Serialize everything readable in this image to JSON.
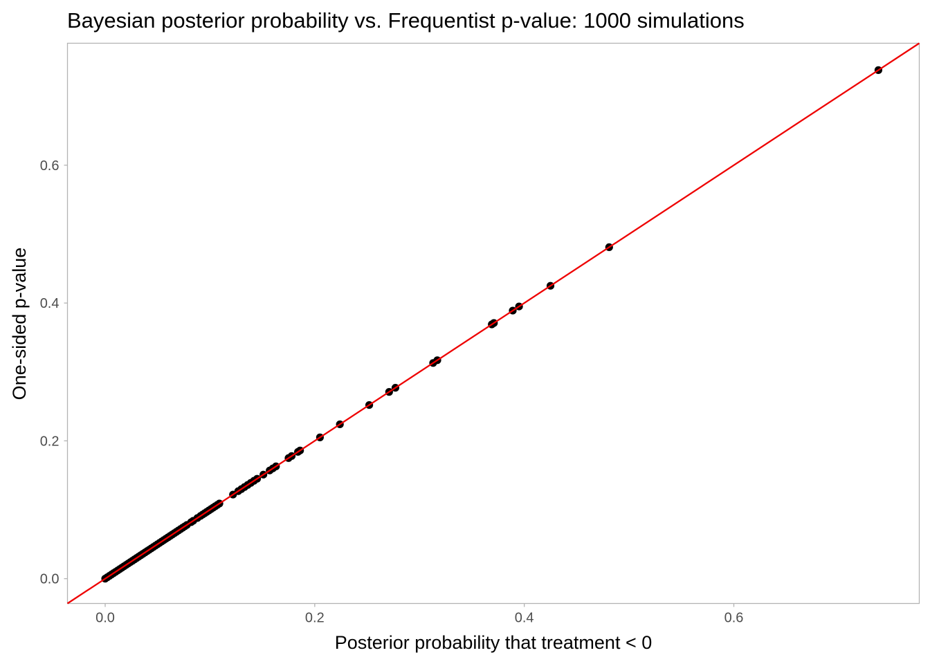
{
  "chart_data": {
    "type": "scatter",
    "title": "Bayesian posterior probability vs. Frequentist p-value: 1000 simulations",
    "xlabel": "Posterior probability that treatment < 0",
    "ylabel": "One-sided p-value",
    "xlim": [
      -0.036,
      0.777
    ],
    "ylim": [
      -0.036,
      0.777
    ],
    "x_ticks": [
      0.0,
      0.2,
      0.4,
      0.6
    ],
    "x_tick_labels": [
      "0.0",
      "0.2",
      "0.4",
      "0.6"
    ],
    "y_ticks": [
      0.0,
      0.2,
      0.4,
      0.6
    ],
    "y_tick_labels": [
      "0.0",
      "0.2",
      "0.4",
      "0.6"
    ],
    "grid": false,
    "reference_line": {
      "slope": 1,
      "intercept": 0,
      "color": "#ee0000"
    },
    "point_color": "#000000",
    "points": [
      [
        0.0,
        0.0
      ],
      [
        0.002,
        0.002
      ],
      [
        0.004,
        0.004
      ],
      [
        0.006,
        0.006
      ],
      [
        0.008,
        0.008
      ],
      [
        0.01,
        0.01
      ],
      [
        0.012,
        0.012
      ],
      [
        0.014,
        0.014
      ],
      [
        0.016,
        0.016
      ],
      [
        0.018,
        0.018
      ],
      [
        0.02,
        0.02
      ],
      [
        0.022,
        0.022
      ],
      [
        0.024,
        0.024
      ],
      [
        0.026,
        0.026
      ],
      [
        0.028,
        0.028
      ],
      [
        0.03,
        0.03
      ],
      [
        0.032,
        0.032
      ],
      [
        0.034,
        0.034
      ],
      [
        0.036,
        0.036
      ],
      [
        0.038,
        0.038
      ],
      [
        0.04,
        0.04
      ],
      [
        0.042,
        0.042
      ],
      [
        0.044,
        0.044
      ],
      [
        0.046,
        0.046
      ],
      [
        0.048,
        0.048
      ],
      [
        0.05,
        0.05
      ],
      [
        0.052,
        0.052
      ],
      [
        0.054,
        0.054
      ],
      [
        0.056,
        0.056
      ],
      [
        0.058,
        0.058
      ],
      [
        0.06,
        0.06
      ],
      [
        0.062,
        0.062
      ],
      [
        0.064,
        0.064
      ],
      [
        0.066,
        0.066
      ],
      [
        0.068,
        0.068
      ],
      [
        0.07,
        0.07
      ],
      [
        0.072,
        0.072
      ],
      [
        0.074,
        0.074
      ],
      [
        0.076,
        0.076
      ],
      [
        0.078,
        0.078
      ],
      [
        0.082,
        0.082
      ],
      [
        0.084,
        0.084
      ],
      [
        0.088,
        0.088
      ],
      [
        0.091,
        0.091
      ],
      [
        0.093,
        0.093
      ],
      [
        0.095,
        0.095
      ],
      [
        0.097,
        0.097
      ],
      [
        0.099,
        0.099
      ],
      [
        0.101,
        0.101
      ],
      [
        0.103,
        0.103
      ],
      [
        0.105,
        0.105
      ],
      [
        0.107,
        0.107
      ],
      [
        0.109,
        0.109
      ],
      [
        0.122,
        0.122
      ],
      [
        0.127,
        0.127
      ],
      [
        0.13,
        0.13
      ],
      [
        0.133,
        0.133
      ],
      [
        0.136,
        0.136
      ],
      [
        0.139,
        0.139
      ],
      [
        0.142,
        0.142
      ],
      [
        0.145,
        0.145
      ],
      [
        0.151,
        0.151
      ],
      [
        0.157,
        0.157
      ],
      [
        0.16,
        0.16
      ],
      [
        0.163,
        0.163
      ],
      [
        0.175,
        0.175
      ],
      [
        0.178,
        0.178
      ],
      [
        0.184,
        0.184
      ],
      [
        0.186,
        0.186
      ],
      [
        0.205,
        0.205
      ],
      [
        0.224,
        0.224
      ],
      [
        0.252,
        0.252
      ],
      [
        0.271,
        0.271
      ],
      [
        0.277,
        0.277
      ],
      [
        0.313,
        0.313
      ],
      [
        0.317,
        0.317
      ],
      [
        0.369,
        0.369
      ],
      [
        0.371,
        0.371
      ],
      [
        0.389,
        0.389
      ],
      [
        0.395,
        0.395
      ],
      [
        0.425,
        0.425
      ],
      [
        0.481,
        0.481
      ],
      [
        0.738,
        0.738
      ]
    ]
  }
}
